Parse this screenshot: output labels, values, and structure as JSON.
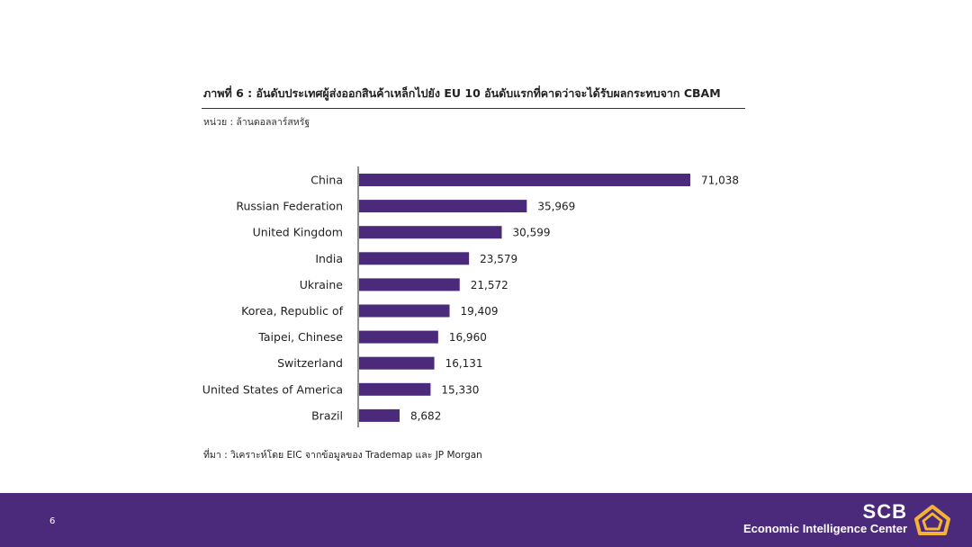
{
  "title": "ภาพที่ 6 : อันดับประเทศผู้ส่งออกสินค้าเหล็กไปยัง EU 10 อันดับแรกที่คาดว่าจะได้รับผลกระทบจาก CBAM",
  "unit": "หน่วย : ล้านดอลลาร์สหรัฐ",
  "source": "ที่มา : วิเคราะห์โดย EIC จากข้อมูลของ Trademap และ JP Morgan",
  "footer": {
    "page_number": "6",
    "brand_name": "SCB",
    "brand_sub": "Economic Intelligence Center"
  },
  "colors": {
    "bar": "#4b2a7b",
    "footer": "#4b2a7b",
    "logo": "#f5b335"
  },
  "chart_data": {
    "type": "bar",
    "orientation": "horizontal",
    "categories": [
      "China",
      "Russian Federation",
      "United Kingdom",
      "India",
      "Ukraine",
      "Korea, Republic of",
      "Taipei, Chinese",
      "Switzerland",
      "United States of America",
      "Brazil"
    ],
    "values": [
      71038,
      35969,
      30599,
      23579,
      21572,
      19409,
      16960,
      16131,
      15330,
      8682
    ],
    "value_labels": [
      "71,038",
      "35,969",
      "30,599",
      "23,579",
      "21,572",
      "19,409",
      "16,960",
      "16,131",
      "15,330",
      "8,682"
    ],
    "title": "",
    "xlabel": "",
    "ylabel": "",
    "xlim": [
      0,
      71038
    ],
    "grid": false,
    "legend": "none"
  }
}
